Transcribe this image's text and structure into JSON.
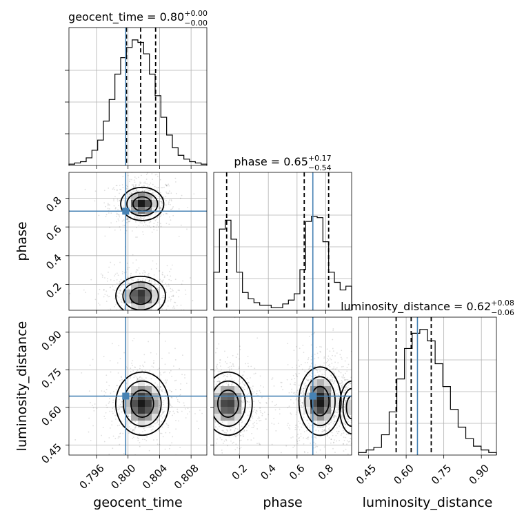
{
  "chart_data": {
    "type": "corner",
    "parameters": [
      {
        "name": "geocent_time",
        "title_label": "geocent_time = 0.80",
        "title_plus": "+0.00",
        "title_minus": "−0.00",
        "median": 0.8016,
        "q_low": 0.7998,
        "q_high": 0.8035,
        "truth": 0.7997,
        "range": [
          0.7925,
          0.81
        ],
        "ticks": [
          0.796,
          0.8,
          0.804,
          0.808
        ],
        "tick_labels": [
          "0.796",
          "0.800",
          "0.804",
          "0.808"
        ]
      },
      {
        "name": "phase",
        "title_label": "phase = 0.65",
        "title_plus": "+0.17",
        "title_minus": "−0.54",
        "median": 0.65,
        "q_low": 0.11,
        "q_high": 0.82,
        "truth": 0.71,
        "range": [
          0.02,
          0.98
        ],
        "ticks": [
          0.2,
          0.4,
          0.6,
          0.8
        ],
        "tick_labels": [
          "0.2",
          "0.4",
          "0.6",
          "0.8"
        ]
      },
      {
        "name": "luminosity_distance",
        "title_label": "luminosity_distance = 0.62",
        "title_plus": "+0.08",
        "title_minus": "−0.06",
        "median": 0.62,
        "q_low": 0.56,
        "q_high": 0.7,
        "truth": 0.645,
        "range": [
          0.41,
          0.96
        ],
        "ticks": [
          0.45,
          0.6,
          0.75,
          0.9
        ],
        "tick_labels": [
          "0.45",
          "0.60",
          "0.75",
          "0.90"
        ]
      }
    ],
    "histograms": {
      "geocent_time": [
        0.01,
        0.02,
        0.03,
        0.06,
        0.12,
        0.2,
        0.35,
        0.52,
        0.72,
        0.85,
        0.93,
        0.99,
        0.97,
        0.88,
        0.72,
        0.55,
        0.38,
        0.24,
        0.14,
        0.08,
        0.05,
        0.03,
        0.02,
        0.01
      ],
      "phase": [
        0.3,
        0.64,
        0.71,
        0.56,
        0.3,
        0.14,
        0.09,
        0.06,
        0.04,
        0.04,
        0.02,
        0.02,
        0.05,
        0.08,
        0.13,
        0.32,
        0.7,
        0.74,
        0.73,
        0.54,
        0.3,
        0.22,
        0.16,
        0.19
      ],
      "luminosity_distance": [
        0.02,
        0.04,
        0.06,
        0.16,
        0.34,
        0.6,
        0.84,
        0.96,
        0.99,
        0.9,
        0.72,
        0.54,
        0.36,
        0.22,
        0.13,
        0.07,
        0.04,
        0.02
      ]
    },
    "modes_2d": {
      "phase_vs_geocent_time": [
        {
          "x": 0.8018,
          "y": 0.76,
          "sx": 0.0013,
          "sy": 0.055,
          "w": 1.0
        },
        {
          "x": 0.8016,
          "y": 0.12,
          "sx": 0.0015,
          "sy": 0.065,
          "w": 0.95
        }
      ],
      "luminosity_distance_vs_geocent_time": [
        {
          "x": 0.8018,
          "y": 0.615,
          "sx": 0.0016,
          "sy": 0.06,
          "w": 1.0
        }
      ],
      "luminosity_distance_vs_phase": [
        {
          "x": 0.12,
          "y": 0.615,
          "sx": 0.08,
          "sy": 0.06,
          "w": 0.9
        },
        {
          "x": 0.76,
          "y": 0.625,
          "sx": 0.07,
          "sy": 0.065,
          "w": 1.0
        },
        {
          "x": 0.98,
          "y": 0.6,
          "sx": 0.04,
          "sy": 0.05,
          "w": 0.5
        }
      ]
    },
    "grid": true,
    "truth_color": "#4682b4",
    "contour_color": "#000000"
  }
}
